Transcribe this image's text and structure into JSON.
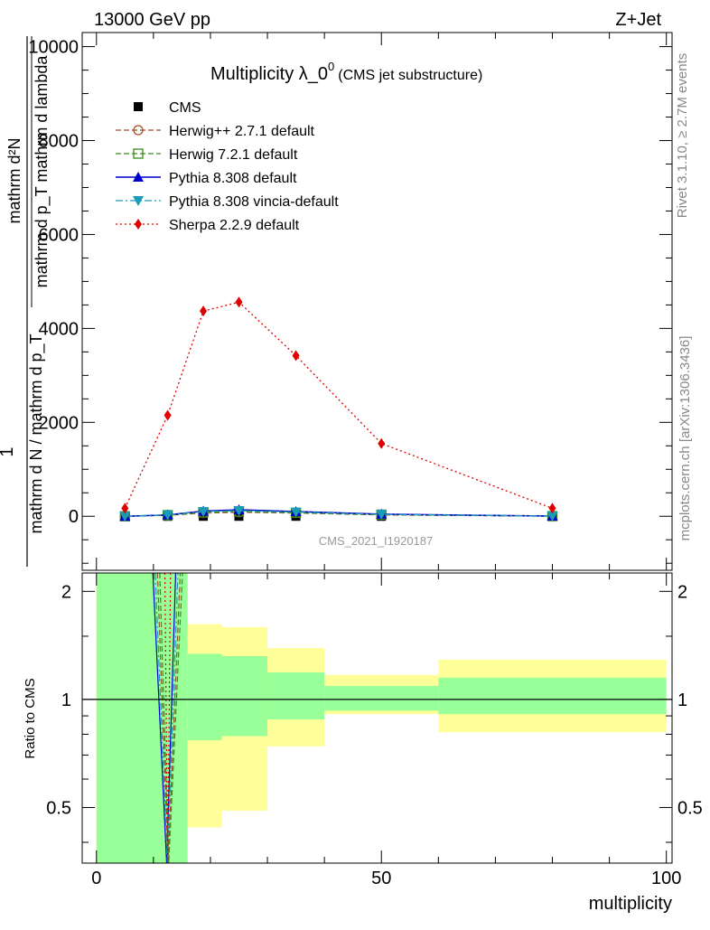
{
  "header": {
    "energy_label": "13000 GeV pp",
    "process_label": "Z+Jet"
  },
  "side_labels": {
    "rivet": "Rivet 3.1.10, ≥ 2.7M events",
    "mcplots": "mcplots.cern.ch [arXiv:1306.3436]"
  },
  "chart_data": [
    {
      "type": "line",
      "title": "Multiplicity λ_0",
      "title_superscript": "0",
      "subtitle": "(CMS jet substructure)",
      "watermark": "CMS_2021_I1920187",
      "ylabel_top": "mathrm d²N",
      "ylabel_top2": "mathrm d p_T mathrm d lambda",
      "ylabel_frac1": "1",
      "ylabel_bottom": "mathrm d N / mathrm d p_T",
      "ylabel_sub": "T",
      "xlim": [
        -2.5,
        101
      ],
      "ylim": [
        -1150,
        10300
      ],
      "yticks": [
        0,
        2000,
        4000,
        6000,
        8000,
        10000
      ],
      "ytick_labels": [
        "0",
        "2000",
        "4000",
        "6000",
        "8000",
        "10000"
      ],
      "legend_position": "top-left",
      "series": [
        {
          "name": "CMS",
          "color": "#000000",
          "marker": "square",
          "line": "none",
          "x": [
            5,
            12.5,
            18.75,
            25,
            35,
            50,
            80
          ],
          "y": [
            0,
            0,
            0,
            0,
            0,
            0,
            0
          ]
        },
        {
          "name": "Herwig++ 2.7.1 default",
          "color": "#a0522d",
          "marker": "open-circle",
          "line": "dashed",
          "x": [
            5,
            12.5,
            18.75,
            25,
            35,
            50,
            80
          ],
          "y": [
            0,
            20,
            70,
            85,
            70,
            30,
            3
          ]
        },
        {
          "name": "Herwig 7.2.1 default",
          "color": "#3a8a1a",
          "marker": "open-square",
          "line": "dashed",
          "x": [
            5,
            12.5,
            18.75,
            25,
            35,
            50,
            80
          ],
          "y": [
            0,
            25,
            80,
            100,
            75,
            35,
            3
          ]
        },
        {
          "name": "Pythia 8.308 default",
          "color": "#0000cc",
          "marker": "triangle-up",
          "line": "solid",
          "x": [
            5,
            12.5,
            18.75,
            25,
            35,
            50,
            80
          ],
          "y": [
            0,
            30,
            110,
            140,
            100,
            45,
            4
          ]
        },
        {
          "name": "Pythia 8.308 vincia-default",
          "color": "#1a9cb8",
          "marker": "triangle-down",
          "line": "dashdot",
          "x": [
            5,
            12.5,
            18.75,
            25,
            35,
            50,
            80
          ],
          "y": [
            0,
            28,
            100,
            120,
            90,
            40,
            4
          ]
        },
        {
          "name": "Sherpa 2.2.9 default",
          "color": "#e00000",
          "marker": "diamond",
          "line": "dotted",
          "x": [
            5,
            12.5,
            18.75,
            25,
            35,
            50,
            80
          ],
          "y": [
            170,
            2150,
            4370,
            4560,
            3420,
            1550,
            170
          ]
        }
      ]
    },
    {
      "type": "area",
      "ylabel": "Ratio to CMS",
      "xlabel": "multiplicity",
      "xlim": [
        -2.5,
        101
      ],
      "ylim": [
        0.35,
        2.25
      ],
      "yticks": [
        0.5,
        1,
        2
      ],
      "ytick_labels": [
        "0.5",
        "1",
        "2"
      ],
      "xticks": [
        0,
        50,
        100
      ],
      "xtick_labels": [
        "0",
        "50",
        "100"
      ],
      "bands": [
        {
          "x0": 0,
          "x1": 16,
          "yellow": [
            0.35,
            2.25
          ],
          "green": [
            0.35,
            2.25
          ]
        },
        {
          "x0": 16,
          "x1": 22,
          "yellow": [
            0.44,
            1.62
          ],
          "green": [
            0.77,
            1.34
          ]
        },
        {
          "x0": 22,
          "x1": 30,
          "yellow": [
            0.49,
            1.59
          ],
          "green": [
            0.79,
            1.32
          ]
        },
        {
          "x0": 30,
          "x1": 40,
          "yellow": [
            0.74,
            1.39
          ],
          "green": [
            0.88,
            1.19
          ]
        },
        {
          "x0": 40,
          "x1": 60,
          "yellow": [
            0.91,
            1.17
          ],
          "green": [
            0.93,
            1.09
          ]
        },
        {
          "x0": 60,
          "x1": 100,
          "yellow": [
            0.81,
            1.29
          ],
          "green": [
            0.91,
            1.15
          ]
        }
      ],
      "reference_line": 1,
      "spike": {
        "x_left": 10.5,
        "x_center": 12.5,
        "x_right": 14.5,
        "y_bottom": 0.35,
        "y_top": 2.25
      }
    }
  ]
}
